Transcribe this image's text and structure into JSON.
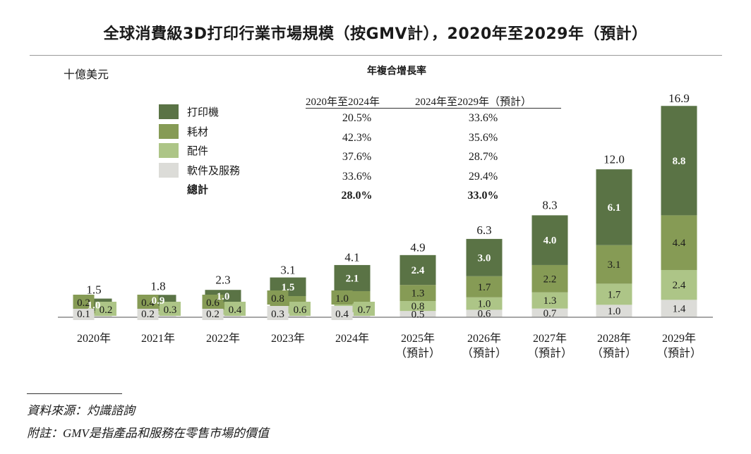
{
  "title": "全球消費級3D打印行業市場規模（按GMV計），2020年至2029年（預計）",
  "unit_label": "十億美元",
  "cagr": {
    "title": "年複合增長率",
    "headers": [
      "2020年至2024年",
      "2024年至2029年（預計）"
    ],
    "rows": [
      {
        "segment": "打印機",
        "v1": "20.5%",
        "v2": "33.6%"
      },
      {
        "segment": "耗材",
        "v1": "42.3%",
        "v2": "35.6%"
      },
      {
        "segment": "配件",
        "v1": "37.6%",
        "v2": "28.7%"
      },
      {
        "segment": "軟件及服務",
        "v1": "33.6%",
        "v2": "29.4%"
      },
      {
        "segment": "總計",
        "v1": "28.0%",
        "v2": "33.0%"
      }
    ]
  },
  "legend": [
    {
      "label": "打印機",
      "color": "#5a7345"
    },
    {
      "label": "耗材",
      "color": "#869b55"
    },
    {
      "label": "配件",
      "color": "#adc587"
    },
    {
      "label": "軟件及服務",
      "color": "#dcdcd8"
    },
    {
      "label": "總計",
      "color": null
    }
  ],
  "chart_data": {
    "type": "bar",
    "stacked": true,
    "title": "全球消費級3D打印行業市場規模（按GMV計），2020年至2029年（預計）",
    "ylabel": "十億美元",
    "xlabel": "",
    "categories": [
      "2020年",
      "2021年",
      "2022年",
      "2023年",
      "2024年",
      "2025年",
      "2026年",
      "2027年",
      "2028年",
      "2029年"
    ],
    "category_sublabels": [
      "",
      "",
      "",
      "",
      "",
      "（預計）",
      "（預計）",
      "（預計）",
      "（預計）",
      "（預計）"
    ],
    "series": [
      {
        "name": "軟件及服務",
        "color": "#dcdcd8",
        "values": [
          0.1,
          0.2,
          0.2,
          0.3,
          0.4,
          0.5,
          0.6,
          0.7,
          1.0,
          1.4
        ]
      },
      {
        "name": "配件",
        "color": "#adc587",
        "values": [
          0.2,
          0.3,
          0.4,
          0.6,
          0.7,
          0.8,
          1.0,
          1.3,
          1.7,
          2.4
        ]
      },
      {
        "name": "耗材",
        "color": "#869b55",
        "values": [
          0.2,
          0.4,
          0.6,
          0.8,
          1.0,
          1.3,
          1.7,
          2.2,
          3.1,
          4.4
        ]
      },
      {
        "name": "打印機",
        "color": "#5a7345",
        "values": [
          1.0,
          0.9,
          1.0,
          1.5,
          2.1,
          2.4,
          3.0,
          4.0,
          6.1,
          8.8
        ]
      }
    ],
    "totals": [
      1.5,
      1.8,
      2.3,
      3.1,
      4.1,
      4.9,
      6.3,
      8.3,
      12.0,
      16.9
    ],
    "ylim": [
      0,
      17
    ],
    "grid": false,
    "legend_position": "top-left"
  },
  "footnotes": {
    "source": "資料來源：灼識諮詢",
    "note": "附註：GMV是指產品和服務在零售市場的價值"
  }
}
